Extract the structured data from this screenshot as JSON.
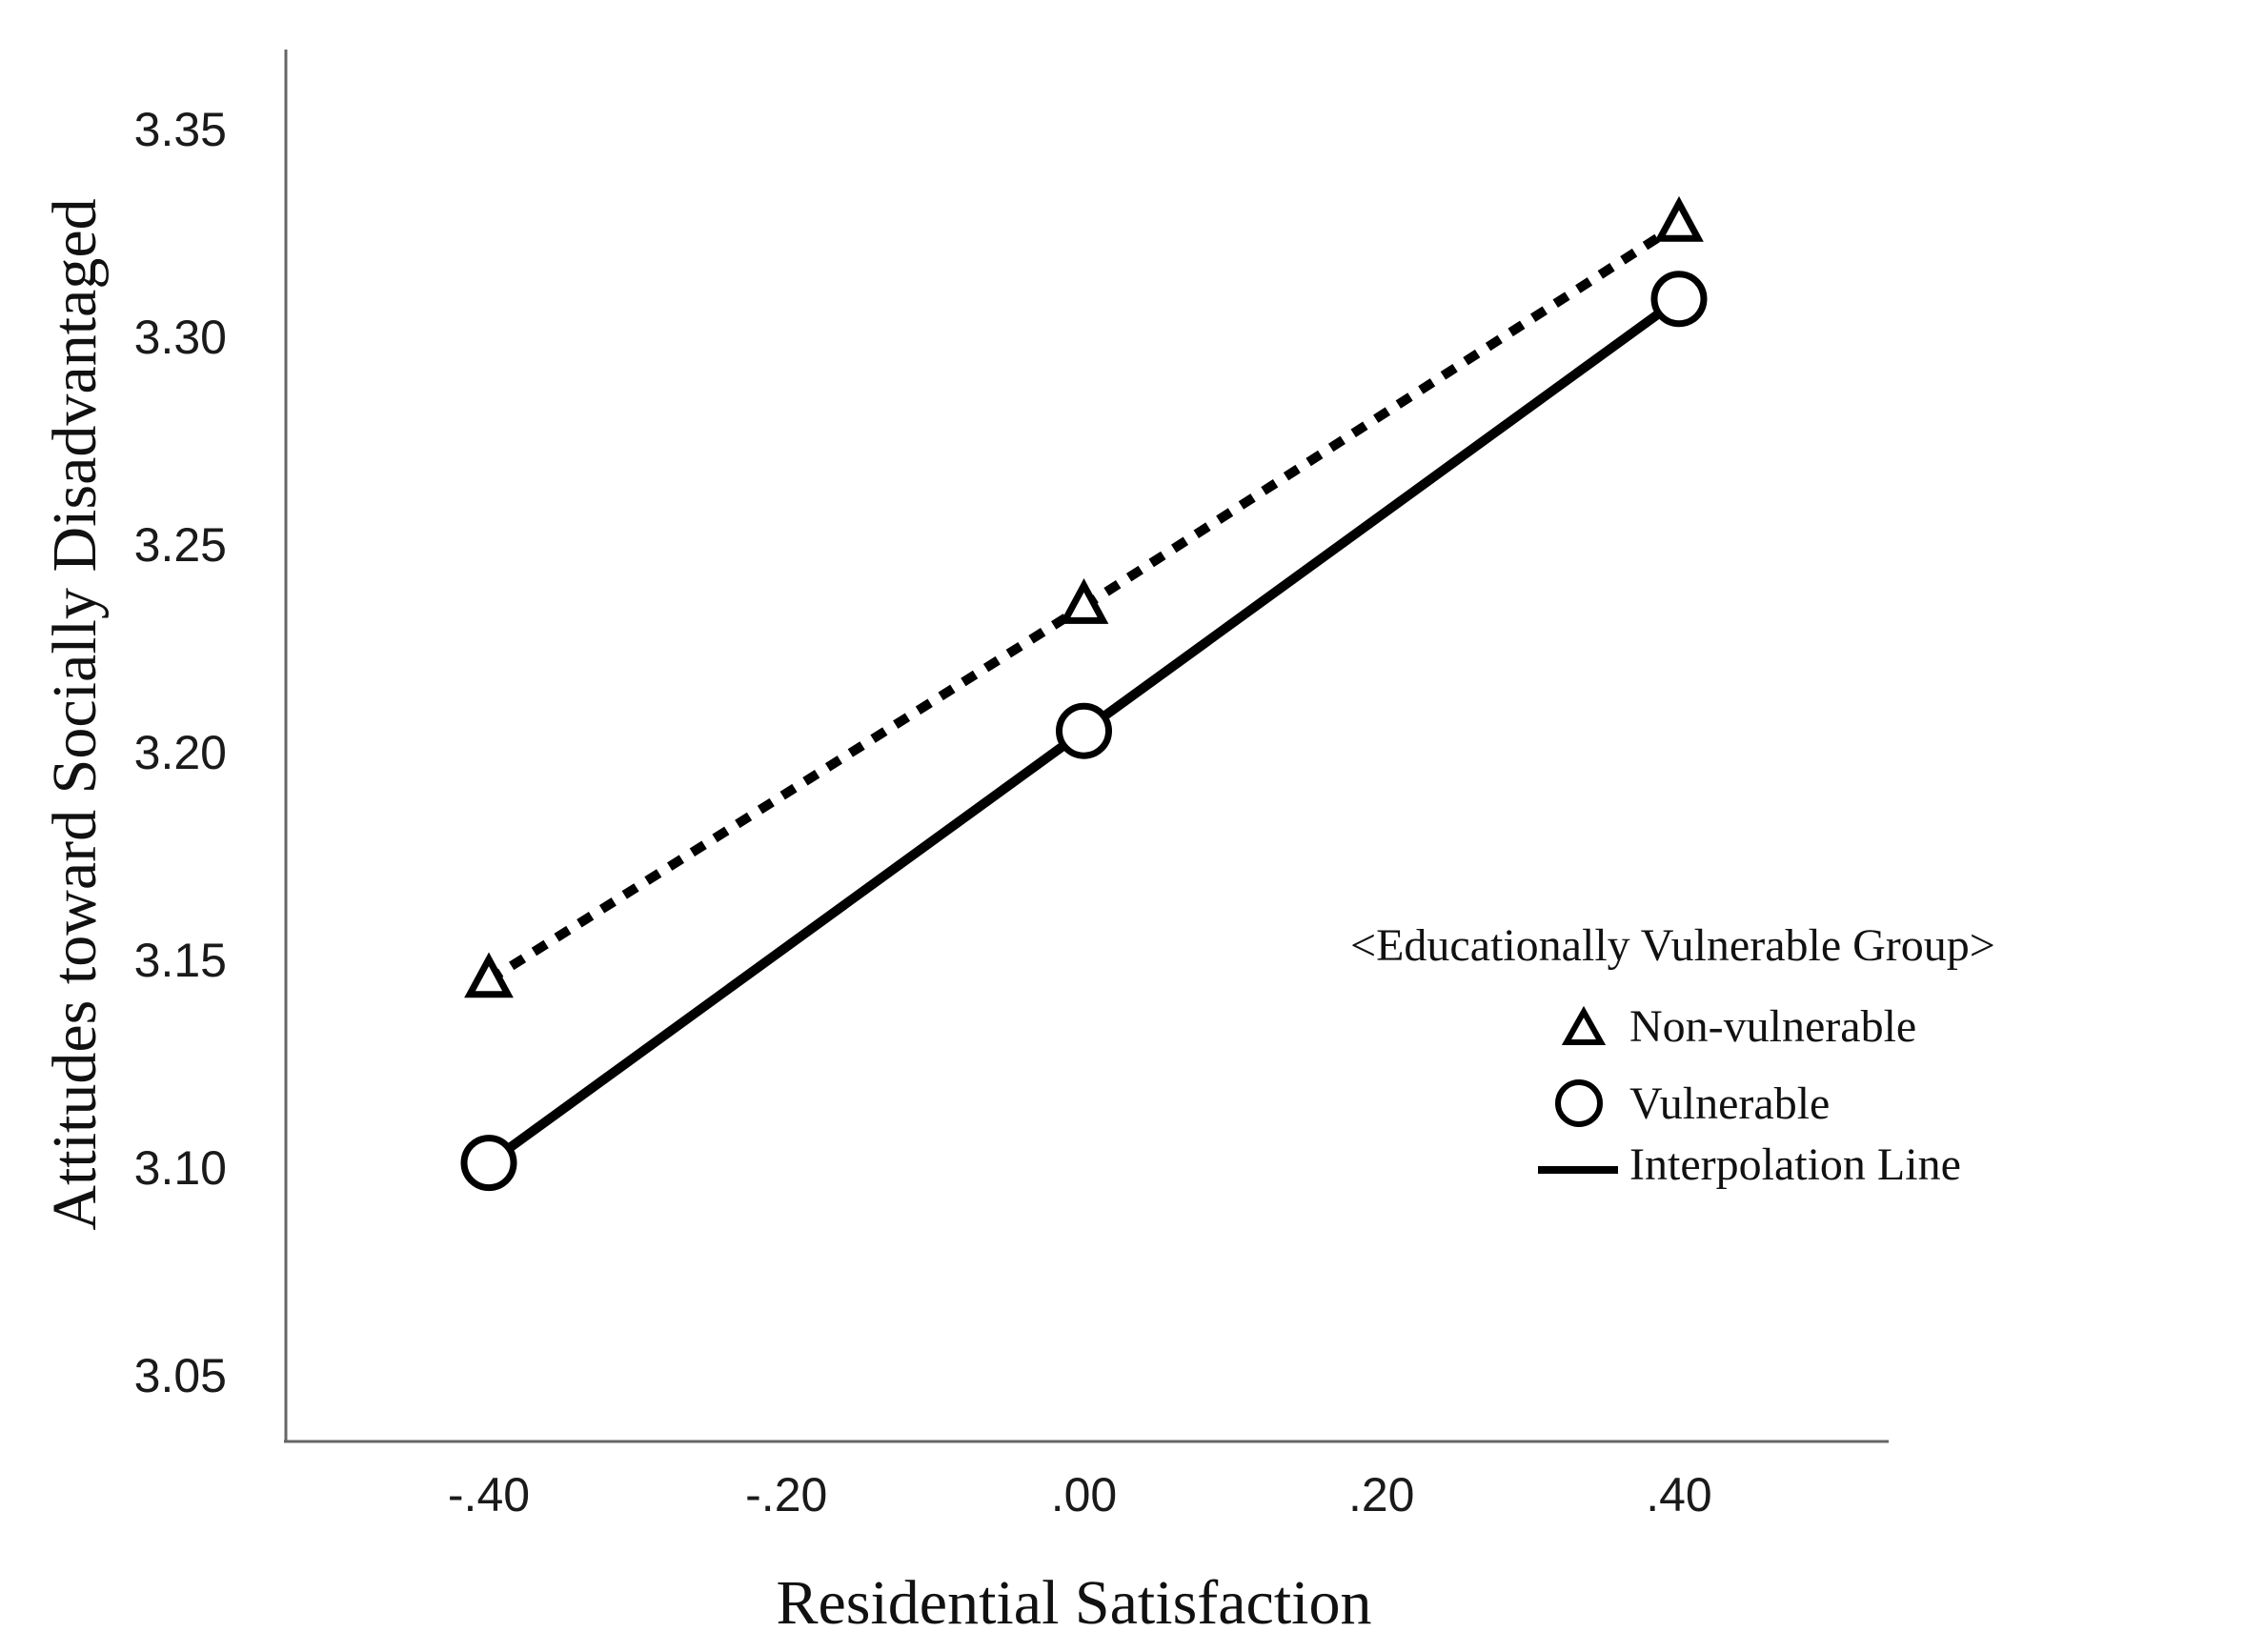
{
  "chart_data": {
    "type": "line",
    "title": "",
    "xlabel": "Residential Satisfaction",
    "ylabel": "Attitudes toward Socially Disadvantaged",
    "x_ticks": [
      -0.4,
      -0.2,
      0.0,
      0.2,
      0.4
    ],
    "x_tick_labels": [
      "-.40",
      "-.20",
      ".00",
      ".20",
      ".40"
    ],
    "y_ticks": [
      3.05,
      3.1,
      3.15,
      3.2,
      3.25,
      3.3,
      3.35
    ],
    "y_tick_labels": [
      "3.05",
      "3.10",
      "3.15",
      "3.20",
      "3.25",
      "3.30",
      "3.35"
    ],
    "xlim": [
      -0.55,
      0.55
    ],
    "ylim": [
      3.035,
      3.37
    ],
    "grid": false,
    "series": [
      {
        "name": "Non-vulnerable",
        "marker": "triangle",
        "line_style": "dotted",
        "x": [
          -0.4,
          0.0,
          0.4
        ],
        "values": [
          3.145,
          3.235,
          3.327
        ]
      },
      {
        "name": "Vulnerable",
        "marker": "circle",
        "line_style": "solid",
        "x": [
          -0.4,
          0.0,
          0.4
        ],
        "values": [
          3.101,
          3.205,
          3.309
        ]
      }
    ],
    "legend": {
      "title": "<Educationally Vulnerable Group>",
      "placement": "right",
      "entries": [
        {
          "label": "Non-vulnerable",
          "symbol": "triangle"
        },
        {
          "label": "Vulnerable",
          "symbol": "circle"
        },
        {
          "label": "Interpolation Line",
          "symbol": "line"
        }
      ]
    },
    "colors": {
      "ink": "#000000",
      "axis": "#666666"
    }
  }
}
